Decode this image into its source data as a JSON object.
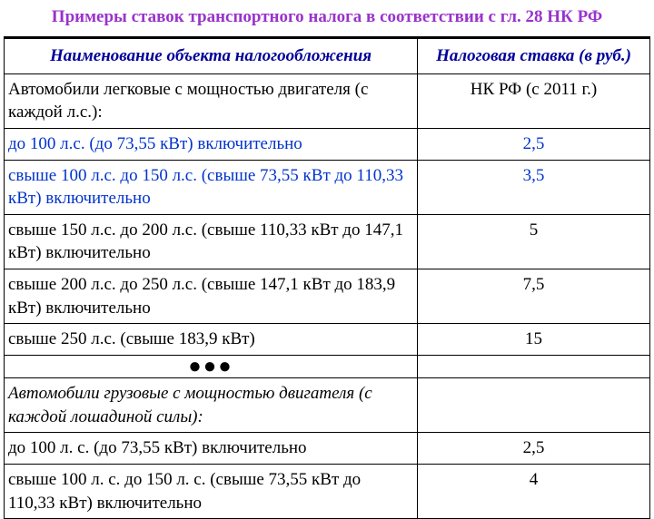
{
  "title": "Примеры ставок транспортного налога в соответствии с гл. 28 НК РФ",
  "headers": {
    "name": "Наименование объекта налогообложения",
    "rate": "Налоговая ставка (в руб.)"
  },
  "rows": [
    {
      "name": "Автомобили легковые с мощностью двигателя (с каждой  л.с.):",
      "rate": "НК РФ (с 2011 г.)",
      "name_color": "#000000",
      "rate_color": "#000000",
      "italic": false
    },
    {
      "name": "до 100 л.с. (до 73,55 кВт) включительно",
      "rate": "2,5",
      "name_color": "#0033cc",
      "rate_color": "#0033cc",
      "italic": false
    },
    {
      "name": " свыше 100 л.с. до 150 л.с. (свыше 73,55 кВт до 110,33 кВт) включительно",
      "rate": "3,5",
      "name_color": "#0033cc",
      "rate_color": "#0033cc",
      "italic": false
    },
    {
      "name": " свыше 150 л.с. до 200 л.с. (свыше 110,33 кВт до 147,1 кВт) включительно",
      "rate": "5",
      "name_color": "#000000",
      "rate_color": "#000000",
      "italic": false
    },
    {
      "name": " свыше 200 л.с. до 250 л.с. (свыше 147,1 кВт до 183,9 кВт) включительно",
      "rate": "7,5",
      "name_color": "#000000",
      "rate_color": "#000000",
      "italic": false
    },
    {
      "name": " свыше 250 л.с. (свыше 183,9 кВт)",
      "rate": "15",
      "name_color": "#000000",
      "rate_color": "#000000",
      "italic": false
    },
    {
      "dots": true,
      "name": "●●●",
      "rate": ""
    },
    {
      "name": "Автомобили грузовые с мощностью двигателя (с каждой лошадиной силы):",
      "rate": "",
      "name_color": "#000000",
      "rate_color": "#000000",
      "italic": true
    },
    {
      "name": "до 100 л. с. (до 73,55 кВт) включительно",
      "rate": "2,5",
      "name_color": "#000000",
      "rate_color": "#000000",
      "italic": false
    },
    {
      "name": "свыше 100 л. с. до 150 л. с. (свыше 73,55 кВт до 110,33 кВт) включительно",
      "rate": "4",
      "name_color": "#000000",
      "rate_color": "#000000",
      "italic": false
    }
  ],
  "styling": {
    "title_color": "#9933cc",
    "header_color": "#000099",
    "border_color": "#000000",
    "background_color": "#ffffff",
    "font_family": "Times New Roman",
    "title_fontsize": 19,
    "header_fontsize": 19,
    "cell_fontsize": 19,
    "col_name_width_pct": 64,
    "col_rate_width_pct": 36
  }
}
